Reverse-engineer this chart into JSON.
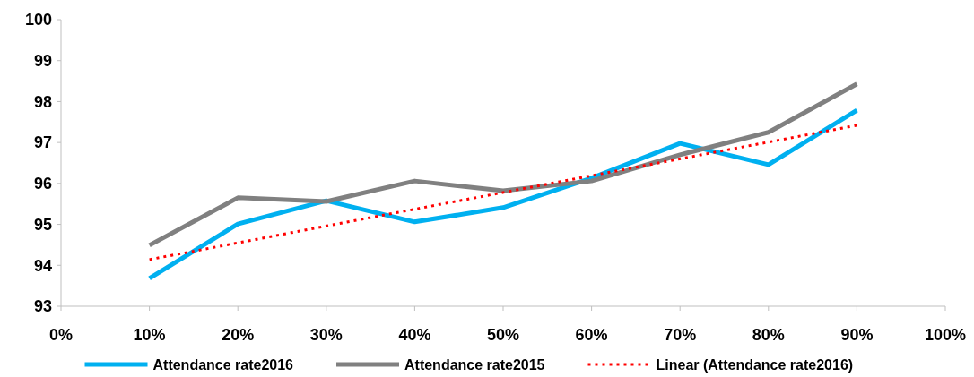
{
  "chart_data": {
    "type": "line",
    "x": [
      10,
      20,
      30,
      40,
      50,
      60,
      70,
      80,
      90
    ],
    "xlim": [
      0,
      100
    ],
    "xticks": [
      {
        "value": 0,
        "label": "0%"
      },
      {
        "value": 10,
        "label": "10%"
      },
      {
        "value": 20,
        "label": "20%"
      },
      {
        "value": 30,
        "label": "30%"
      },
      {
        "value": 40,
        "label": "40%"
      },
      {
        "value": 50,
        "label": "50%"
      },
      {
        "value": 60,
        "label": "60%"
      },
      {
        "value": 70,
        "label": "70%"
      },
      {
        "value": 80,
        "label": "80%"
      },
      {
        "value": 90,
        "label": "90%"
      },
      {
        "value": 100,
        "label": "100%"
      }
    ],
    "ylim": [
      93,
      100
    ],
    "yticks": [
      93,
      94,
      95,
      96,
      97,
      98,
      99,
      100
    ],
    "legend": "bottom",
    "grid": false,
    "series": [
      {
        "name": "Attendance rate2016",
        "color": "#00b0f0",
        "values": [
          93.68,
          95.01,
          95.58,
          95.06,
          95.41,
          96.13,
          96.98,
          96.46,
          97.79
        ]
      },
      {
        "name": "Attendance rate2015",
        "color": "#808080",
        "values": [
          94.49,
          95.65,
          95.56,
          96.06,
          95.82,
          96.06,
          96.7,
          97.25,
          98.43
        ]
      },
      {
        "name": "Linear (Attendance rate2016)",
        "color": "#ff0000",
        "type": "line",
        "line_style": "dotted",
        "x": [
          10,
          90
        ],
        "values": [
          94.14,
          97.42
        ]
      }
    ]
  }
}
